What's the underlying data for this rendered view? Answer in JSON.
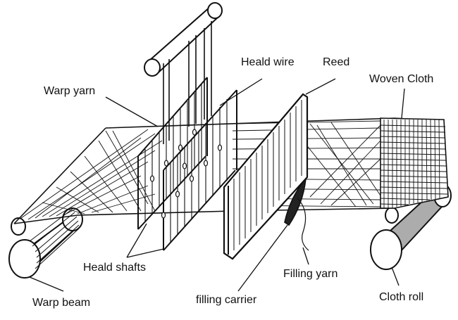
{
  "labels": {
    "warp_yarn": "Warp yarn",
    "heald_wire": "Heald wire",
    "reed": "Reed",
    "woven_cloth": "Woven Cloth",
    "heald_shafts": "Heald shafts",
    "filling_yarn": "Filling yarn",
    "warp_beam": "Warp beam",
    "filling_carrier": "filling carrier",
    "cloth_roll": "Cloth roll"
  },
  "colors": {
    "ink": "#111111",
    "background": "#ffffff"
  }
}
